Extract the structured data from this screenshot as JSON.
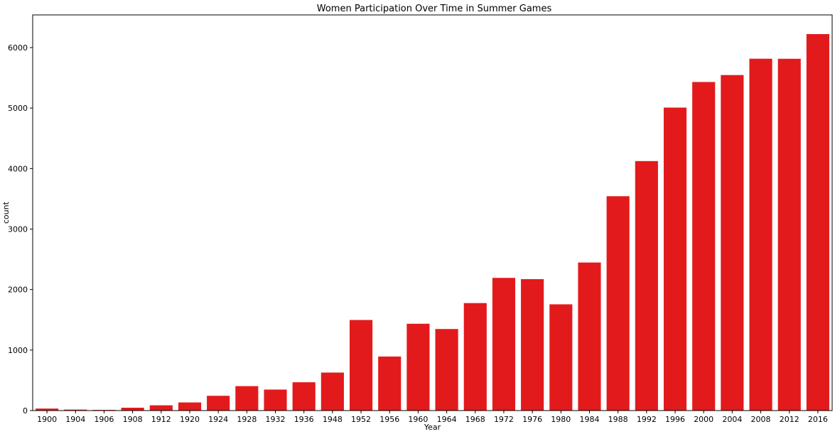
{
  "chart_data": {
    "type": "bar",
    "title": "Women Participation Over Time in Summer Games",
    "xlabel": "Year",
    "ylabel": "count",
    "categories": [
      "1900",
      "1904",
      "1906",
      "1908",
      "1912",
      "1920",
      "1924",
      "1928",
      "1932",
      "1936",
      "1948",
      "1952",
      "1956",
      "1960",
      "1964",
      "1968",
      "1972",
      "1976",
      "1980",
      "1984",
      "1988",
      "1992",
      "1996",
      "2000",
      "2004",
      "2008",
      "2012",
      "2016"
    ],
    "values": [
      33,
      16,
      11,
      47,
      87,
      134,
      244,
      404,
      347,
      468,
      628,
      1497,
      893,
      1435,
      1348,
      1777,
      2193,
      2172,
      1756,
      2447,
      3543,
      4124,
      5008,
      5431,
      5546,
      5816,
      5815,
      6223
    ],
    "yticks": [
      0,
      1000,
      2000,
      3000,
      4000,
      5000,
      6000
    ],
    "ylim": [
      0,
      6540
    ],
    "bar_color": "#e31a1c",
    "grid": false
  }
}
